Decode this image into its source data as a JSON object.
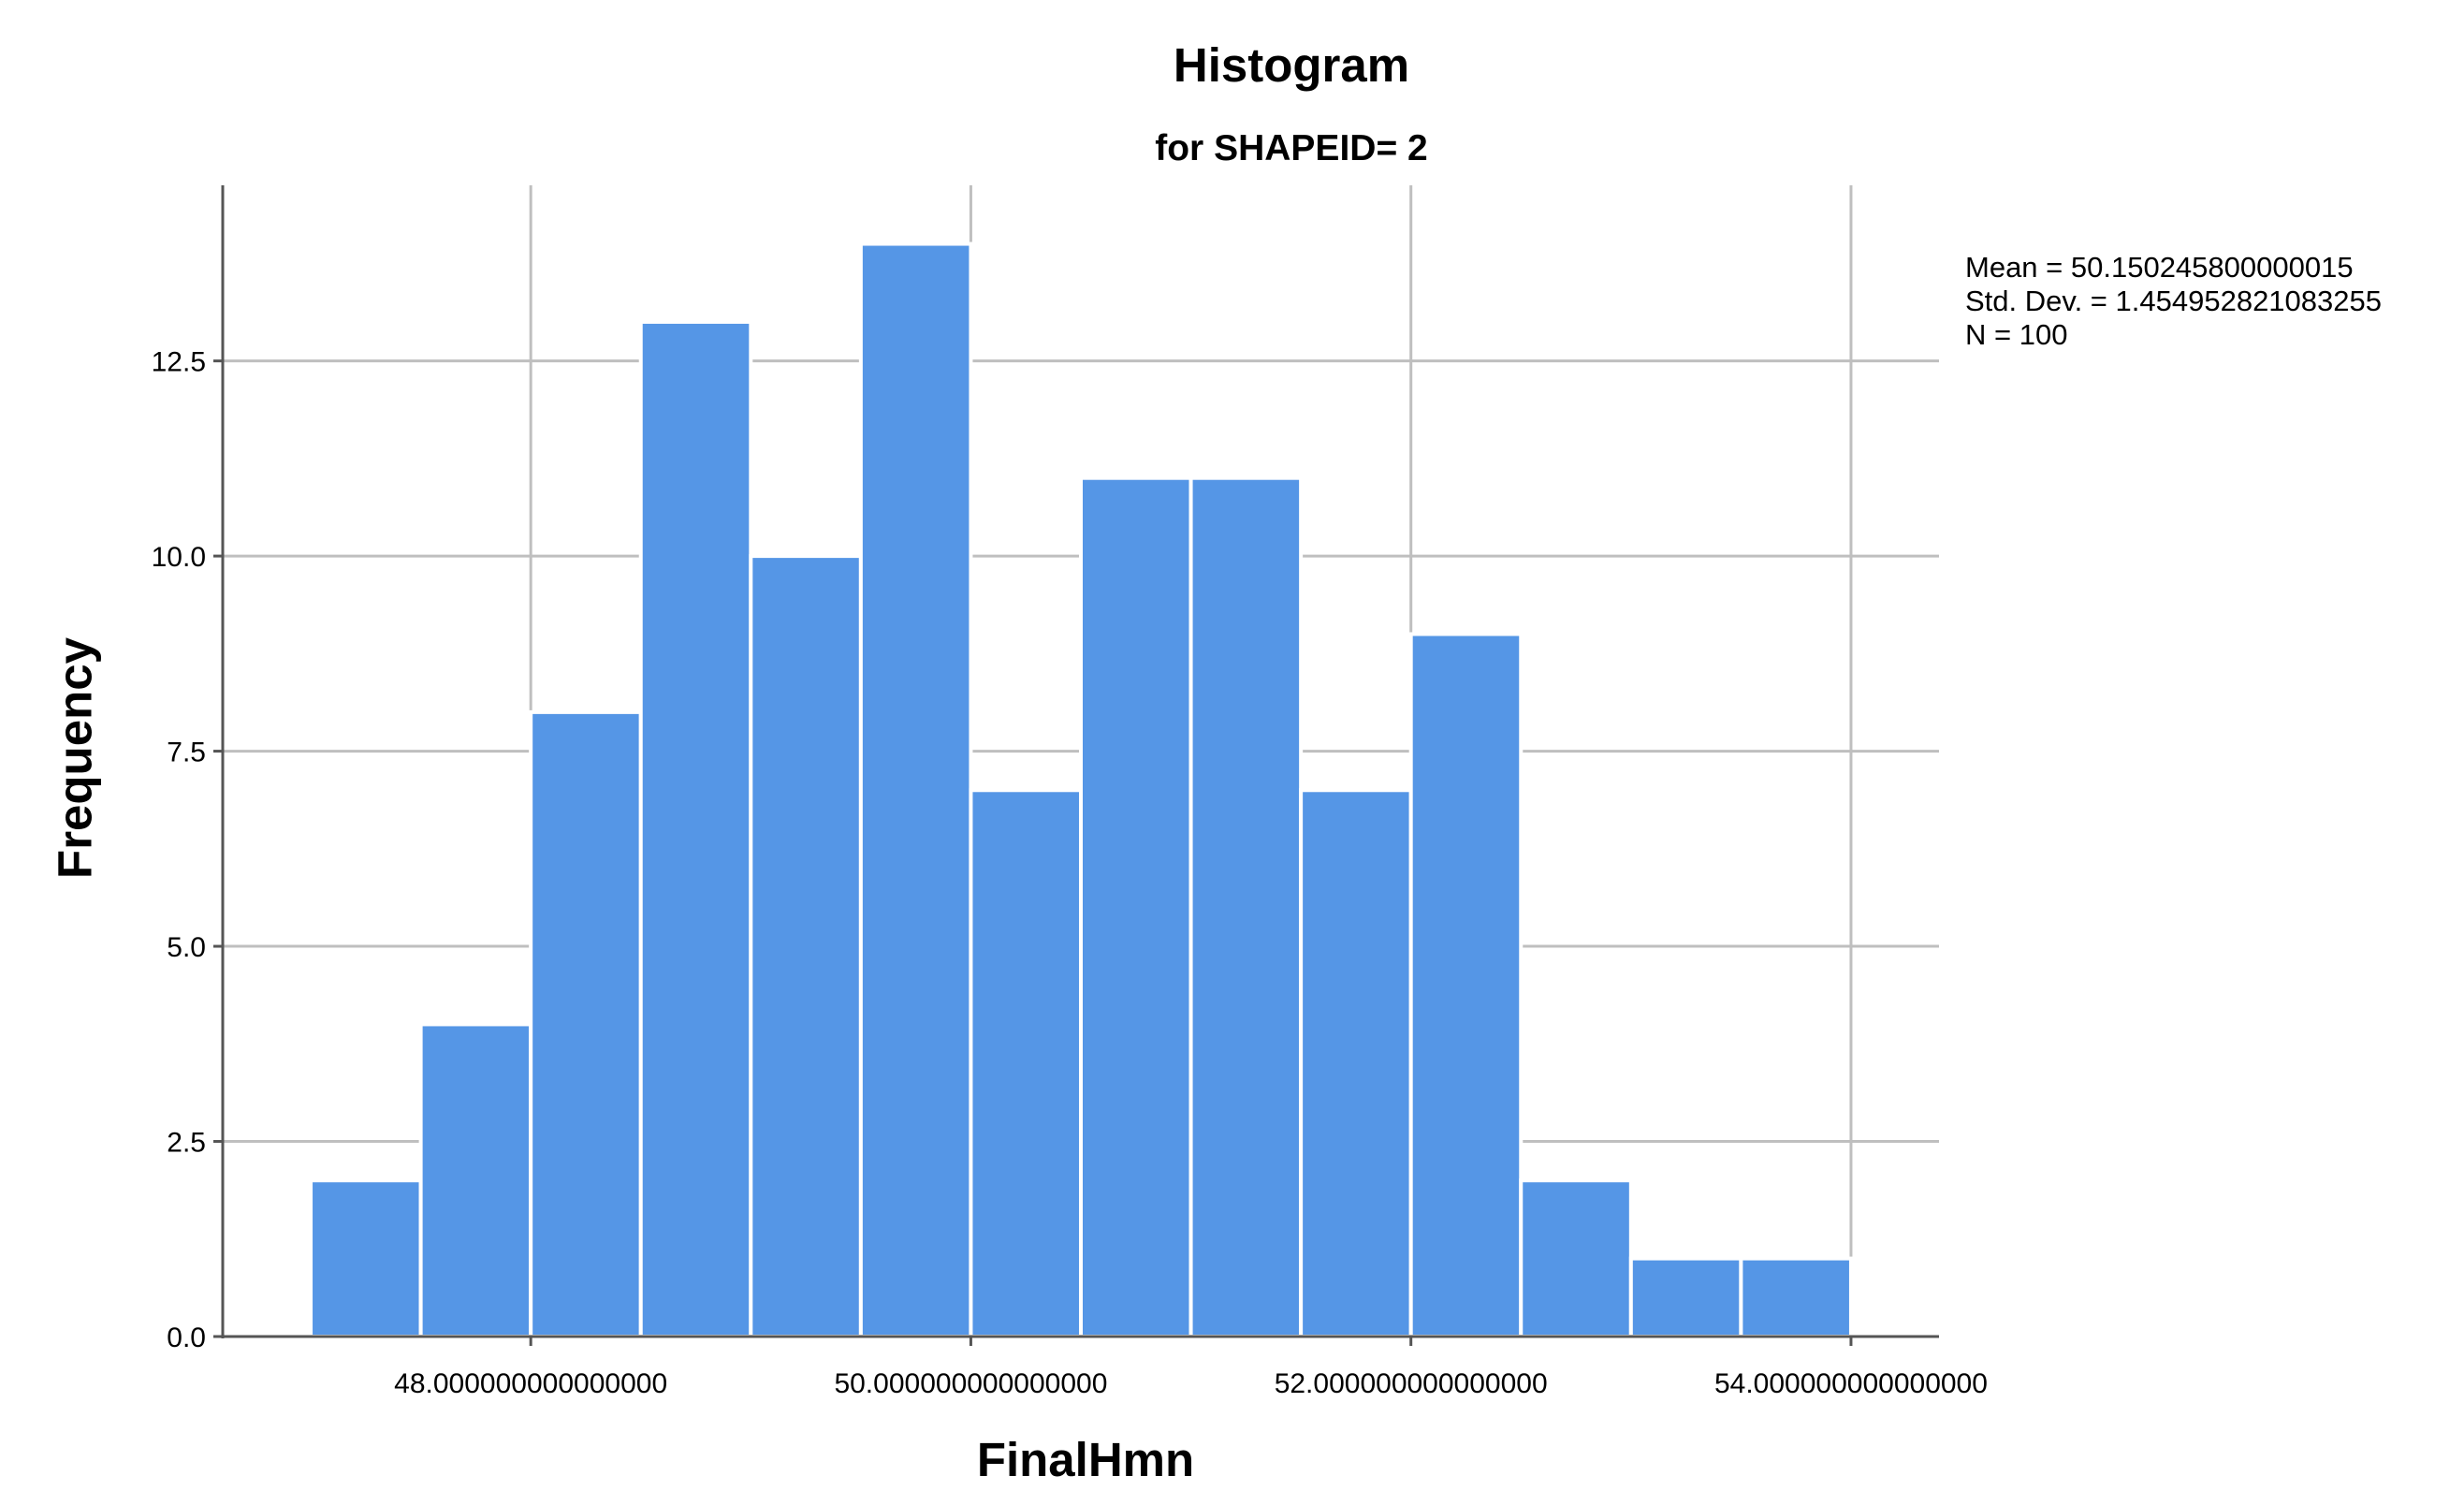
{
  "chart_data": {
    "type": "bar",
    "title": "Histogram",
    "subtitle": "for SHAPEID= 2",
    "xlabel": "FinalHmn",
    "ylabel": "Frequency",
    "bin_edges": [
      47.0,
      47.5,
      48.0,
      48.5,
      49.0,
      49.5,
      50.0,
      50.5,
      51.0,
      51.5,
      52.0,
      52.5,
      53.0,
      53.5,
      54.0
    ],
    "values": [
      2,
      4,
      8,
      13,
      10,
      14,
      7,
      11,
      11,
      7,
      9,
      2,
      1,
      1
    ],
    "xlim": [
      46.6,
      54.4
    ],
    "ylim": [
      0,
      14.75
    ],
    "x_ticks": [
      48,
      50,
      52,
      54
    ],
    "x_tick_labels": [
      "48.000000000000000",
      "50.000000000000000",
      "52.000000000000000",
      "54.000000000000000"
    ],
    "y_ticks": [
      0,
      2.5,
      5,
      7.5,
      10,
      12.5
    ],
    "y_tick_labels": [
      "0.0",
      "2.5",
      "5.0",
      "7.5",
      "10.0",
      "12.5"
    ],
    "grid": true,
    "bar_color": "#5596E6",
    "stats": {
      "mean": "Mean = 50.150245800000015",
      "std_dev": "Std. Dev. = 1.454952821083255",
      "n": "N = 100"
    }
  }
}
